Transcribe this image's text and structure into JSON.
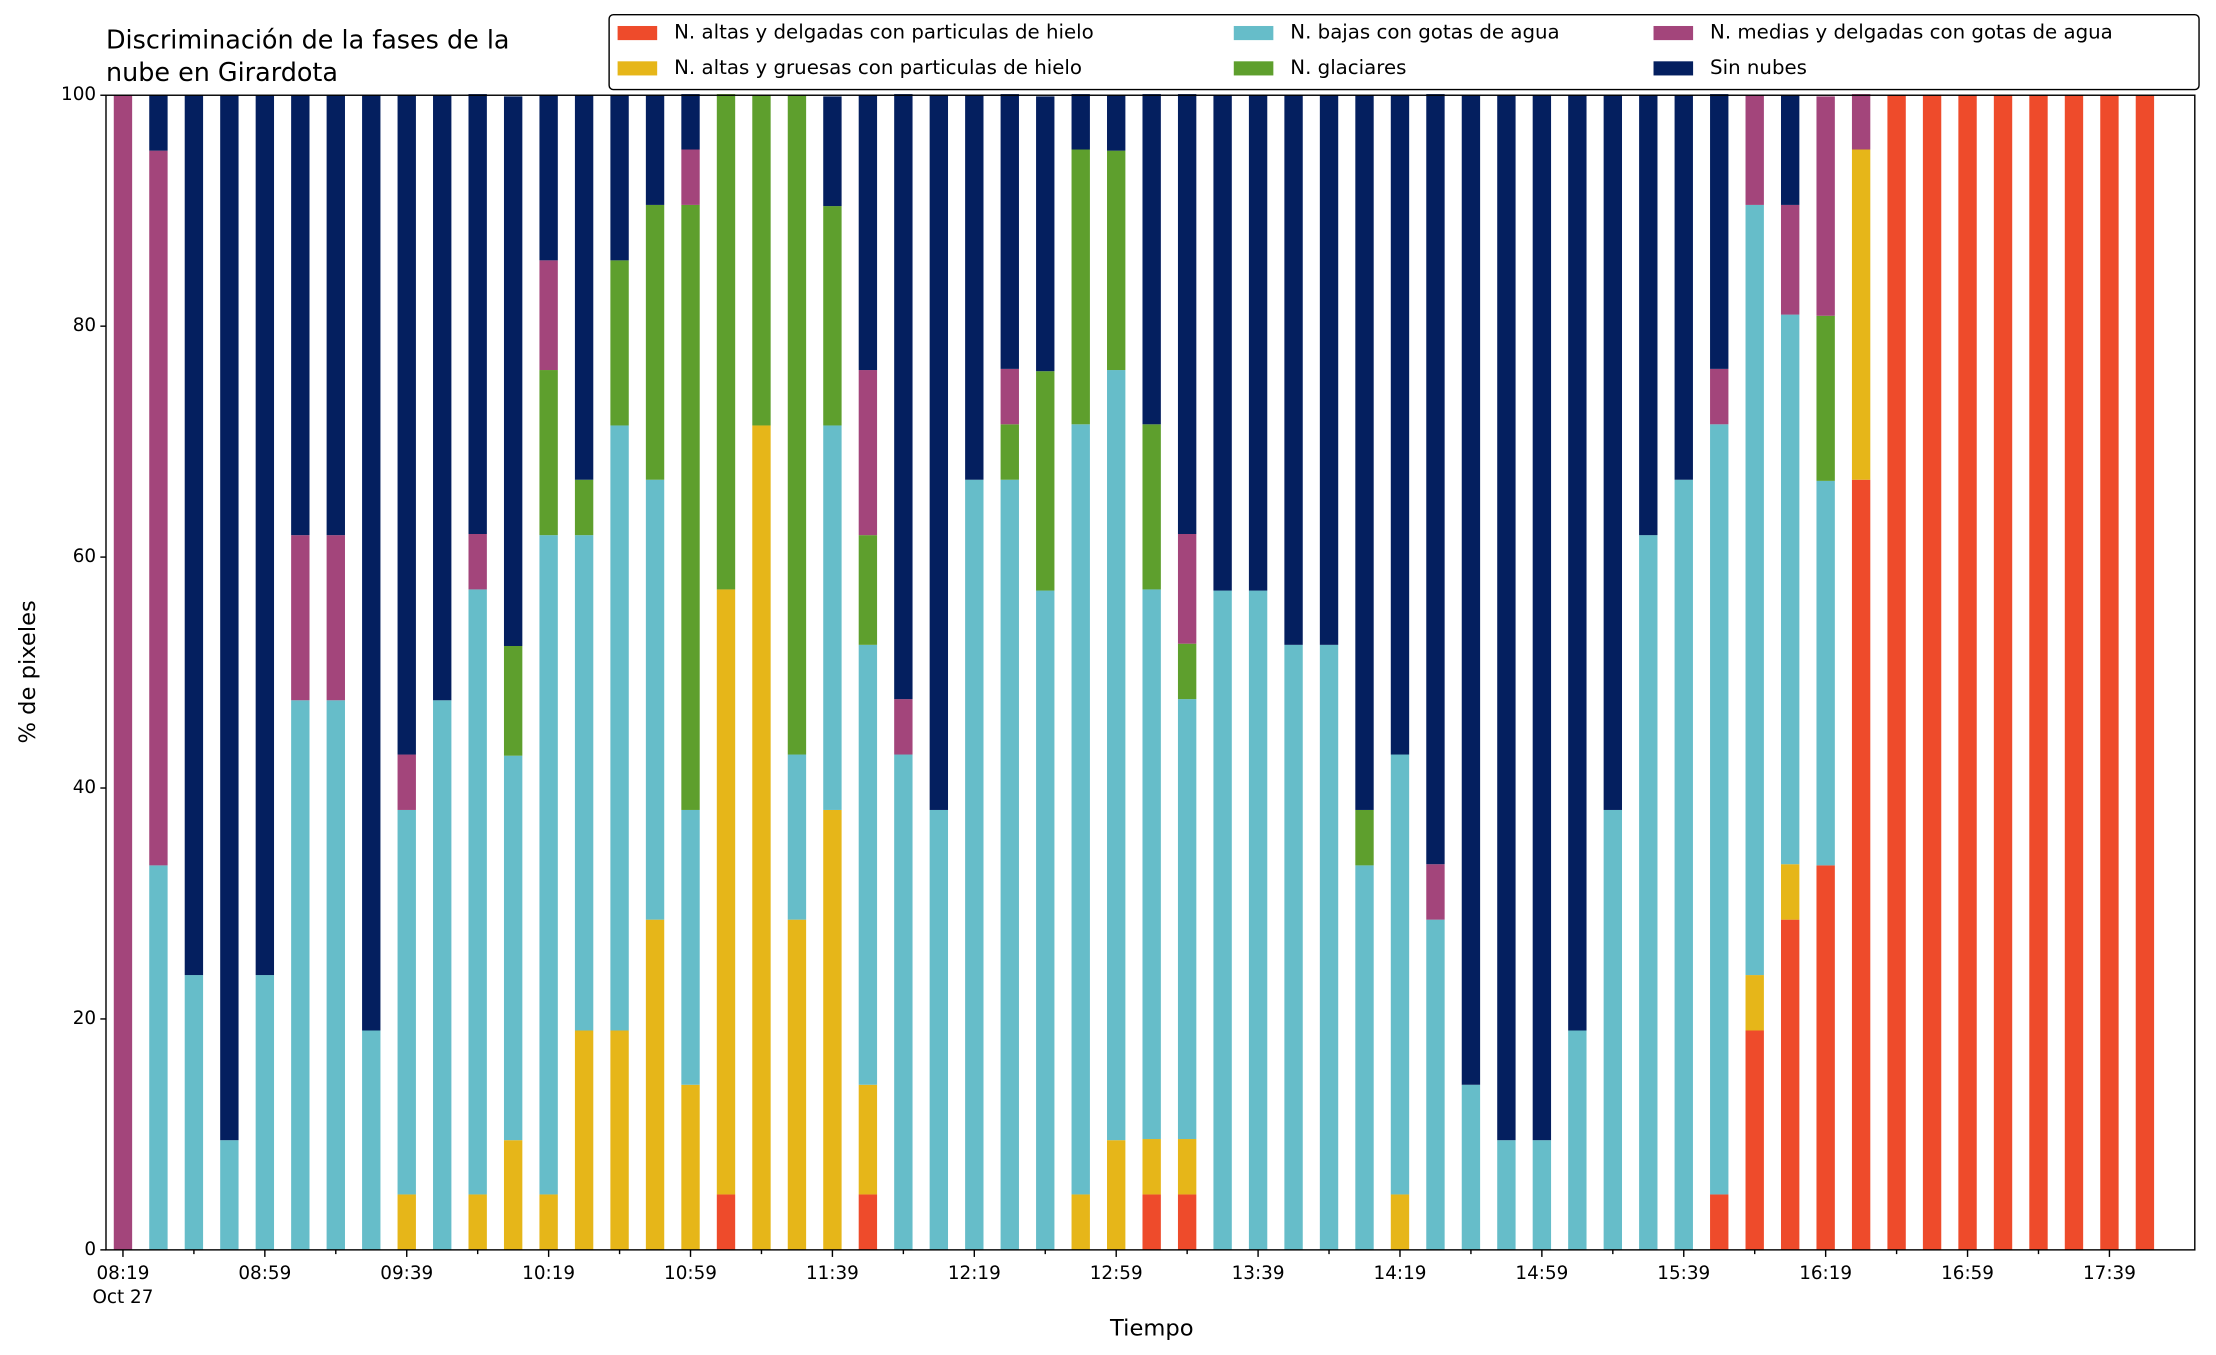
{
  "chart_data": {
    "type": "stacked_bar",
    "title": [
      "Discriminación de la fases de la",
      "nube en Girardota"
    ],
    "x_label": "Tiempo",
    "y_label": "% de pixeles",
    "x_date_label": "Oct 27",
    "categories": [
      "08:19",
      null,
      null,
      null,
      "08:59",
      null,
      null,
      null,
      "09:39",
      null,
      null,
      null,
      "10:19",
      null,
      null,
      null,
      "10:59",
      null,
      null,
      null,
      "11:39",
      null,
      null,
      null,
      "12:19",
      null,
      null,
      null,
      "12:59",
      null,
      null,
      null,
      "13:39",
      null,
      null,
      null,
      "14:19",
      null,
      null,
      null,
      "14:59",
      null,
      null,
      null,
      "15:39",
      null,
      null,
      null,
      "16:19",
      null,
      null,
      null,
      "16:59",
      null,
      null,
      null,
      "17:39",
      null
    ],
    "ylim": [
      0,
      100
    ],
    "yticks": [
      0,
      20,
      40,
      60,
      80,
      100
    ],
    "series": [
      {
        "name": "N. altas y delgadas con particulas de hielo",
        "color": "#ee4b2b",
        "values": [
          0,
          0,
          0,
          0,
          0,
          0,
          0,
          0,
          0,
          0,
          0,
          0,
          0,
          0,
          0,
          0,
          0,
          4.8,
          0,
          0,
          0,
          4.8,
          0,
          0,
          0,
          0,
          0,
          0,
          0,
          4.8,
          4.8,
          0,
          0,
          0,
          0,
          0,
          0,
          0,
          0,
          0,
          0,
          0,
          0,
          0,
          0,
          4.8,
          19.0,
          28.6,
          33.3,
          66.7,
          100,
          100,
          100,
          100,
          100,
          100,
          100,
          100
        ]
      },
      {
        "name": "N. altas y gruesas con particulas de hielo",
        "color": "#e6b619",
        "values": [
          0,
          0,
          0,
          0,
          0,
          0,
          0,
          0,
          4.8,
          0,
          4.8,
          9.5,
          4.8,
          19.0,
          19.0,
          28.6,
          14.3,
          52.4,
          71.4,
          28.6,
          38.1,
          9.5,
          0,
          0,
          0,
          0,
          0,
          4.8,
          9.5,
          4.8,
          4.8,
          0,
          0,
          0,
          0,
          0,
          4.8,
          0,
          0,
          0,
          0,
          0,
          0,
          0,
          0,
          0,
          4.8,
          4.8,
          0,
          28.6,
          0,
          0,
          0,
          0,
          0,
          0,
          0,
          0
        ]
      },
      {
        "name": "N. bajas con gotas de agua",
        "color": "#66bdc9",
        "values": [
          0,
          33.3,
          23.8,
          9.5,
          23.8,
          47.6,
          47.6,
          19.0,
          33.3,
          47.6,
          52.4,
          33.3,
          57.1,
          42.9,
          52.4,
          38.1,
          23.8,
          0,
          0,
          14.3,
          33.3,
          38.1,
          42.9,
          38.1,
          66.7,
          66.7,
          57.1,
          66.7,
          66.7,
          47.6,
          38.1,
          57.1,
          57.1,
          52.4,
          52.4,
          33.3,
          38.1,
          28.6,
          14.3,
          9.5,
          9.5,
          19.0,
          38.1,
          61.9,
          66.7,
          66.7,
          66.7,
          47.6,
          33.3,
          0,
          0,
          0,
          0,
          0,
          0,
          0,
          0,
          0
        ]
      },
      {
        "name": "N. glaciares",
        "color": "#5e9f2d",
        "values": [
          0,
          0,
          0,
          0,
          0,
          0,
          0,
          0,
          0,
          0,
          0,
          9.5,
          14.3,
          4.8,
          14.3,
          23.8,
          52.4,
          42.9,
          28.6,
          57.1,
          19.0,
          9.5,
          0,
          0,
          0,
          4.8,
          19.0,
          23.8,
          19.0,
          14.3,
          4.8,
          0,
          0,
          0,
          0,
          4.8,
          0,
          0,
          0,
          0,
          0,
          0,
          0,
          0,
          0,
          0,
          0,
          0,
          14.3,
          0,
          0,
          0,
          0,
          0,
          0,
          0,
          0,
          0
        ]
      },
      {
        "name": "N. medias y delgadas con gotas de agua",
        "color": "#a3457b",
        "values": [
          100,
          61.9,
          0,
          0,
          0,
          14.3,
          14.3,
          0,
          4.8,
          0,
          4.8,
          0,
          9.5,
          0,
          0,
          0,
          4.8,
          0,
          0,
          0,
          0,
          14.3,
          4.8,
          0,
          0,
          4.8,
          0,
          0,
          0,
          0,
          9.5,
          0,
          0,
          0,
          0,
          0,
          0,
          4.8,
          0,
          0,
          0,
          0,
          0,
          0,
          0,
          4.8,
          9.5,
          9.5,
          19.0,
          4.8,
          0,
          0,
          0,
          0,
          0,
          0,
          0,
          0
        ]
      },
      {
        "name": "Sin nubes",
        "color": "#041f5f",
        "values": [
          0,
          4.8,
          76.2,
          90.5,
          76.2,
          38.1,
          38.1,
          81.0,
          57.1,
          52.4,
          38.1,
          47.6,
          14.3,
          33.3,
          14.3,
          9.5,
          4.8,
          0,
          0,
          0,
          9.5,
          23.8,
          52.4,
          61.9,
          33.3,
          23.8,
          23.8,
          4.8,
          4.8,
          28.6,
          38.1,
          42.9,
          42.9,
          47.6,
          47.6,
          61.9,
          57.1,
          66.7,
          85.7,
          90.5,
          90.5,
          81.0,
          61.9,
          38.1,
          33.3,
          23.8,
          0,
          9.5,
          0,
          0,
          0,
          0,
          0,
          0,
          0,
          0,
          0,
          0
        ]
      }
    ]
  }
}
